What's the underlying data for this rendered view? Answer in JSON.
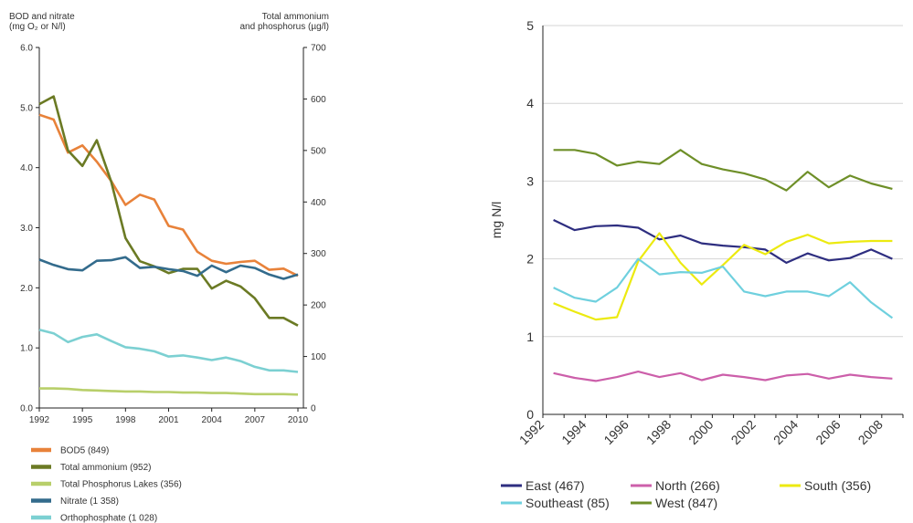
{
  "chart_data": [
    {
      "type": "line",
      "left_axis_title": [
        "BOD and nitrate",
        "(mg O₂ or N/l)"
      ],
      "right_axis_title": [
        "Total ammonium",
        "and phosphorus (µg/l)"
      ],
      "x": [
        1992,
        1993,
        1994,
        1995,
        1996,
        1997,
        1998,
        1999,
        2000,
        2001,
        2002,
        2003,
        2004,
        2005,
        2006,
        2007,
        2008,
        2009,
        2010
      ],
      "xticks": [
        1992,
        1995,
        1998,
        2001,
        2004,
        2007,
        2010
      ],
      "ylim_left": [
        0,
        6
      ],
      "yticks_left": [
        "0.0",
        "1.0",
        "2.0",
        "3.0",
        "4.0",
        "5.0",
        "6.0"
      ],
      "ylim_right": [
        0,
        700
      ],
      "yticks_right": [
        "0",
        "100",
        "200",
        "300",
        "400",
        "500",
        "600",
        "700"
      ],
      "series": [
        {
          "name": "BOD5 (849)",
          "axis": "left",
          "color": "#e8823a",
          "values": [
            4.88,
            4.8,
            4.25,
            4.37,
            4.1,
            3.78,
            3.38,
            3.55,
            3.47,
            3.03,
            2.97,
            2.6,
            2.45,
            2.4,
            2.43,
            2.45,
            2.3,
            2.32,
            2.2
          ]
        },
        {
          "name": "Total ammonium (952)",
          "axis": "right",
          "color": "#6b7a24",
          "values": [
            590,
            605,
            500,
            470,
            520,
            440,
            330,
            285,
            275,
            262,
            270,
            270,
            232,
            247,
            236,
            213,
            175,
            175,
            160
          ]
        },
        {
          "name": "Total Phosphorus Lakes (356)",
          "axis": "right",
          "color": "#b8cf6a",
          "values": [
            38,
            38,
            37,
            35,
            34,
            33,
            32,
            32,
            31,
            31,
            30,
            30,
            29,
            29,
            28,
            27,
            27,
            27,
            26
          ]
        },
        {
          "name": "Nitrate (1 358)",
          "axis": "left",
          "color": "#336b8c",
          "values": [
            2.47,
            2.38,
            2.31,
            2.29,
            2.45,
            2.46,
            2.51,
            2.33,
            2.35,
            2.31,
            2.28,
            2.2,
            2.37,
            2.26,
            2.37,
            2.33,
            2.22,
            2.15,
            2.22
          ]
        },
        {
          "name": "Orthophosphate (1 028)",
          "axis": "right",
          "color": "#7cd0d2",
          "values": [
            152,
            145,
            128,
            138,
            143,
            130,
            118,
            115,
            110,
            100,
            102,
            98,
            93,
            98,
            91,
            80,
            73,
            73,
            70
          ]
        }
      ]
    },
    {
      "type": "line",
      "ylabel": "mg N/l",
      "x": [
        1992,
        1993,
        1994,
        1995,
        1996,
        1997,
        1998,
        1999,
        2000,
        2001,
        2002,
        2003,
        2004,
        2005,
        2006,
        2007,
        2008
      ],
      "xticks": [
        "1992",
        "1994",
        "1996",
        "1998",
        "2000",
        "2002",
        "2004",
        "2006",
        "2008"
      ],
      "ylim": [
        0,
        5
      ],
      "yticks": [
        "0",
        "1",
        "2",
        "3",
        "4",
        "5"
      ],
      "series": [
        {
          "name": "East (467)",
          "color": "#2e2e80",
          "values": [
            2.5,
            2.37,
            2.42,
            2.43,
            2.4,
            2.25,
            2.3,
            2.2,
            2.17,
            2.15,
            2.12,
            1.95,
            2.07,
            1.98,
            2.01,
            2.12,
            2.0
          ]
        },
        {
          "name": "North (266)",
          "color": "#cc5faa",
          "values": [
            0.53,
            0.47,
            0.43,
            0.48,
            0.55,
            0.48,
            0.53,
            0.44,
            0.51,
            0.48,
            0.44,
            0.5,
            0.52,
            0.46,
            0.51,
            0.48,
            0.46
          ]
        },
        {
          "name": "South (356)",
          "color": "#ecea10",
          "values": [
            1.43,
            1.32,
            1.22,
            1.25,
            1.97,
            2.33,
            1.95,
            1.67,
            1.92,
            2.18,
            2.06,
            2.22,
            2.31,
            2.2,
            2.22,
            2.23,
            2.23
          ]
        },
        {
          "name": "Southeast (85)",
          "color": "#6fd0de",
          "values": [
            1.63,
            1.5,
            1.45,
            1.63,
            2.0,
            1.8,
            1.83,
            1.82,
            1.9,
            1.58,
            1.52,
            1.58,
            1.58,
            1.52,
            1.7,
            1.44,
            1.24
          ]
        },
        {
          "name": "West (847)",
          "color": "#6e8f28",
          "values": [
            3.4,
            3.4,
            3.35,
            3.2,
            3.25,
            3.22,
            3.4,
            3.22,
            3.15,
            3.1,
            3.02,
            2.88,
            3.12,
            2.92,
            3.07,
            2.97,
            2.9
          ]
        }
      ]
    }
  ]
}
